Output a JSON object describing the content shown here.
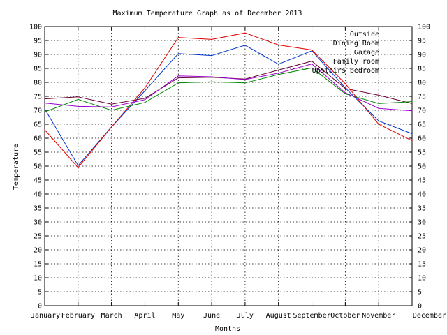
{
  "chart_data": {
    "type": "line",
    "title": "Maximum Temperature Graph as of December 2013",
    "xlabel": "Months",
    "ylabel": "Temperature",
    "ylim": [
      0,
      100
    ],
    "y_ticks": [
      0,
      5,
      10,
      15,
      20,
      25,
      30,
      35,
      40,
      45,
      50,
      55,
      60,
      65,
      70,
      75,
      80,
      85,
      90,
      95,
      100
    ],
    "y2_ticks": [
      0,
      5,
      10,
      15,
      20,
      25,
      30,
      35,
      40,
      45,
      50,
      55,
      60,
      65,
      70,
      75,
      80,
      85,
      90,
      95,
      100
    ],
    "grid": true,
    "legend_position": "top-right",
    "categories": [
      "January",
      "February",
      "March",
      "April",
      "May",
      "June",
      "July",
      "August",
      "September",
      "October",
      "November",
      "December"
    ],
    "series": [
      {
        "name": "Outside",
        "color": "#0033cc",
        "values": [
          70.5,
          50.2,
          64.0,
          77.0,
          90.3,
          89.6,
          93.3,
          86.5,
          91.3,
          78.0,
          66.2,
          61.6
        ]
      },
      {
        "name": "Dining Room",
        "color": "#660033",
        "values": [
          74.1,
          74.8,
          72.2,
          74.3,
          81.6,
          81.8,
          81.2,
          84.4,
          87.6,
          77.8,
          75.4,
          72.4
        ]
      },
      {
        "name": "Garage",
        "color": "#dd0000",
        "values": [
          63.0,
          49.5,
          64.0,
          78.0,
          96.1,
          95.4,
          97.7,
          93.4,
          91.6,
          79.5,
          65.0,
          59.1
        ]
      },
      {
        "name": "Family room",
        "color": "#008800",
        "values": [
          69.4,
          73.9,
          70.0,
          72.8,
          79.8,
          80.2,
          79.8,
          82.8,
          85.2,
          75.9,
          72.4,
          73.1
        ]
      },
      {
        "name": "Upstairs bedroom",
        "color": "#9900cc",
        "values": [
          72.6,
          71.4,
          71.2,
          73.8,
          82.3,
          82.0,
          81.0,
          83.3,
          86.6,
          76.3,
          70.7,
          69.8
        ]
      }
    ]
  }
}
